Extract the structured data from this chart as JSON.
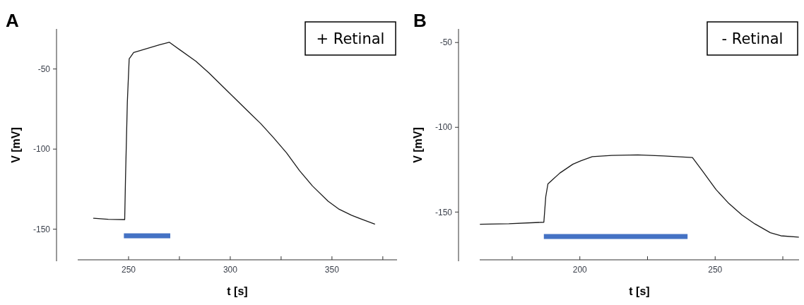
{
  "chart_data": [
    {
      "type": "line",
      "title": "A",
      "xlabel": "t [s]",
      "ylabel": "V [mV]",
      "annotations": [
        "+ Retinal"
      ],
      "xlim": [
        225,
        382
      ],
      "ylim": [
        -170,
        -25
      ],
      "xticks": [
        250,
        {
          "value": 275,
          "label": null
        },
        300,
        {
          "value": 325,
          "label": null
        },
        350,
        {
          "value": 375,
          "label": null
        }
      ],
      "yticks": [
        -50,
        -100,
        -150
      ],
      "series": [
        {
          "color": "#1a1a1a",
          "x": [
            232.8,
            240,
            248.1,
            248.5,
            249.4,
            250.3,
            252.5,
            258.9,
            265.3,
            270,
            283.1,
            289.5,
            297.1,
            308.6,
            315,
            321.3,
            327.7,
            334.1,
            340.4,
            348.1,
            353.2,
            359.6,
            365.9,
            371
          ],
          "values": [
            -143.2,
            -143.8,
            -144,
            -118,
            -70.6,
            -43.7,
            -39.7,
            -37.3,
            -34.9,
            -33.3,
            -45.2,
            -52.4,
            -61.9,
            -76.2,
            -84.1,
            -92.9,
            -102.4,
            -113.5,
            -123,
            -132.5,
            -137.3,
            -141.3,
            -144.4,
            -146.8
          ]
        },
        {
          "color": "#4472c4",
          "x": [
            247.7,
            270.5
          ],
          "values": [
            -154.1,
            -154.1
          ]
        }
      ]
    },
    {
      "type": "line",
      "title": "B",
      "xlabel": "t [s]",
      "ylabel": "V [mV]",
      "annotations": [
        "- Retinal"
      ],
      "xlim": [
        163,
        281
      ],
      "ylim": [
        -179,
        -42
      ],
      "xticks": [
        {
          "value": 175,
          "label": null
        },
        200,
        {
          "value": 225,
          "label": null
        },
        250,
        {
          "value": 275,
          "label": null
        }
      ],
      "yticks": [
        -50,
        -100,
        -150
      ],
      "series": [
        {
          "color": "#1a1a1a",
          "x": [
            163.2,
            173.8,
            186.7,
            187.4,
            188.2,
            189.7,
            192.6,
            197.4,
            200.3,
            204.6,
            211.8,
            221.4,
            231,
            241.6,
            245.5,
            250.3,
            255.1,
            259.9,
            264.7,
            270.4,
            274.3,
            280.8
          ],
          "values": [
            -157.2,
            -156.9,
            -156,
            -141,
            -133.4,
            -131.2,
            -127,
            -121.8,
            -119.8,
            -117.3,
            -116.6,
            -116.3,
            -116.9,
            -117.8,
            -126.2,
            -136.7,
            -145,
            -151.7,
            -157,
            -162.2,
            -164,
            -164.8
          ]
        },
        {
          "color": "#4472c4",
          "x": [
            186.7,
            239.8
          ],
          "values": [
            -164.4,
            -164.4
          ]
        }
      ]
    }
  ]
}
